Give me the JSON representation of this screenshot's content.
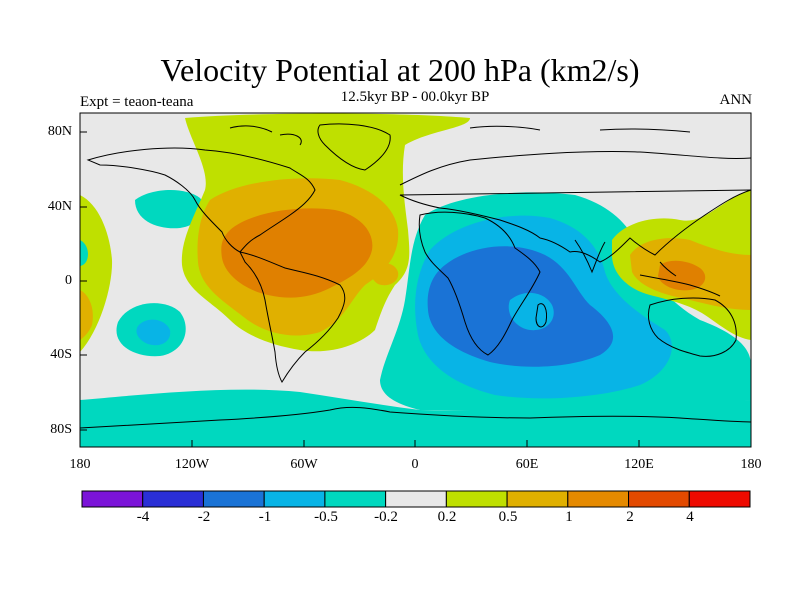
{
  "title": "Velocity Potential at 200 hPa (km2/s)",
  "subtitle": "12.5kyr BP - 00.0kyr BP",
  "experiment": "Expt = teaon-teana",
  "season": "ANN",
  "axes": {
    "lat_labels": [
      "80N",
      "40N",
      "0",
      "40S",
      "80S"
    ],
    "lon_labels": [
      "180",
      "120W",
      "60W",
      "0",
      "60E",
      "120E",
      "180"
    ]
  },
  "colorbar": {
    "colors": [
      "#7b14d8",
      "#2a2fd6",
      "#1a73d6",
      "#08b4e6",
      "#00d8bf",
      "#e8e8e8",
      "#bfe000",
      "#e0b000",
      "#e58a00",
      "#e34a00",
      "#ee0a00"
    ],
    "labels": [
      "-4",
      "-2",
      "-1",
      "-0.5",
      "-0.2",
      "0.2",
      "0.5",
      "1",
      "2",
      "4"
    ]
  },
  "palette": {
    "land_outline": "#000000",
    "neutral": "#e8e8e8",
    "pos1": "#bfe000",
    "pos2": "#e0b000",
    "pos3": "#e08000",
    "neg1": "#00d8bf",
    "neg2": "#08b4e6",
    "neg3": "#1a73d6"
  }
}
